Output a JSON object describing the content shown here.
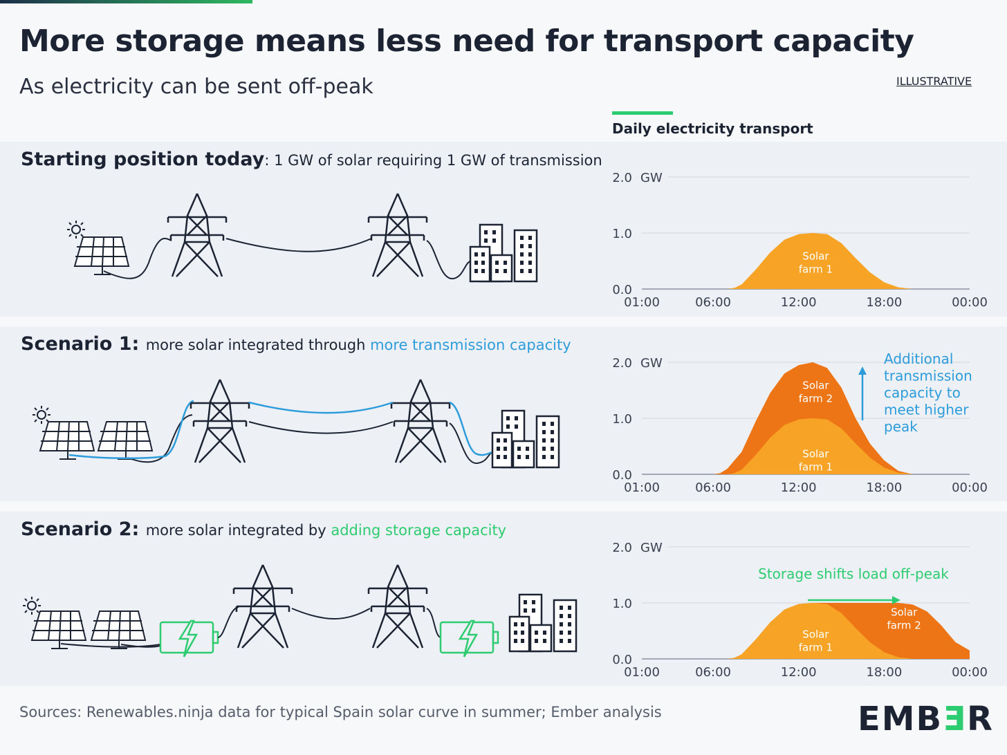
{
  "title": "More storage means less need for transport capacity",
  "subtitle": "As electricity can be sent off-peak",
  "tag": "ILLUSTRATIVE",
  "chart_header": "Daily electricity transport",
  "panels": [
    {
      "lead": "Starting position today",
      "rest": ": 1 GW of solar requiring 1 GW of transmission",
      "highlight": ""
    },
    {
      "lead": "Scenario 1: ",
      "rest": "more solar integrated through ",
      "highlight": "more transmission capacity"
    },
    {
      "lead": "Scenario 2: ",
      "rest": "more solar integrated by ",
      "highlight": "adding storage capacity"
    }
  ],
  "chart_data": [
    {
      "type": "area",
      "title": "Starting position today",
      "x_ticks": [
        "01:00",
        "06:00",
        "12:00",
        "18:00",
        "00:00"
      ],
      "x_range_hours": [
        1,
        24
      ],
      "y_ticks": [
        "0.0",
        "1.0",
        "2.0"
      ],
      "y_unit": "GW",
      "ylim": [
        0,
        2
      ],
      "series": [
        {
          "name": "Solar farm 1",
          "label_lines": [
            "Solar",
            "farm 1"
          ],
          "color": "#f7a325",
          "x": [
            1,
            7,
            7.5,
            8,
            9,
            10,
            11,
            12,
            13,
            14,
            15,
            16,
            17,
            18,
            19,
            20,
            24
          ],
          "values": [
            0,
            0,
            0.02,
            0.08,
            0.35,
            0.65,
            0.88,
            0.98,
            1.0,
            0.98,
            0.82,
            0.55,
            0.3,
            0.12,
            0.03,
            0,
            0
          ]
        }
      ]
    },
    {
      "type": "area",
      "title": "Scenario 1",
      "x_ticks": [
        "01:00",
        "06:00",
        "12:00",
        "18:00",
        "00:00"
      ],
      "x_range_hours": [
        1,
        24
      ],
      "y_ticks": [
        "0.0",
        "1.0",
        "2.0"
      ],
      "y_unit": "GW",
      "ylim": [
        0,
        2
      ],
      "series": [
        {
          "name": "Solar farm 2",
          "label_lines": [
            "Solar",
            "farm 2"
          ],
          "color": "#ee7515",
          "x": [
            1,
            6,
            6.5,
            7,
            8,
            9,
            10,
            11,
            12,
            13,
            14,
            15,
            16,
            17,
            18,
            19,
            20,
            24
          ],
          "values": [
            0,
            0,
            0.02,
            0.1,
            0.4,
            0.95,
            1.45,
            1.8,
            1.95,
            2.0,
            1.9,
            1.55,
            1.0,
            0.55,
            0.25,
            0.06,
            0,
            0
          ]
        },
        {
          "name": "Solar farm 1",
          "label_lines": [
            "Solar",
            "farm 1"
          ],
          "color": "#f7a325",
          "x": [
            1,
            7,
            7.5,
            8,
            9,
            10,
            11,
            12,
            13,
            14,
            15,
            16,
            17,
            18,
            19,
            20,
            24
          ],
          "values": [
            0,
            0,
            0.02,
            0.08,
            0.35,
            0.65,
            0.88,
            0.98,
            1.0,
            0.98,
            0.82,
            0.55,
            0.3,
            0.12,
            0.03,
            0,
            0
          ]
        }
      ],
      "annotation": {
        "lines": [
          "Additional",
          "transmission",
          "capacity to",
          "meet higher",
          "peak"
        ],
        "color": "#2d9cdb"
      }
    },
    {
      "type": "area",
      "title": "Scenario 2",
      "x_ticks": [
        "01:00",
        "06:00",
        "12:00",
        "18:00",
        "00:00"
      ],
      "x_range_hours": [
        1,
        24
      ],
      "y_ticks": [
        "0.0",
        "1.0",
        "2.0"
      ],
      "y_unit": "GW",
      "ylim": [
        0,
        2
      ],
      "series": [
        {
          "name": "Solar farm 2",
          "label_lines": [
            "Solar",
            "farm 2"
          ],
          "color": "#ee7515",
          "x": [
            1,
            7,
            7.5,
            8,
            9,
            10,
            11,
            12,
            13,
            14,
            15,
            16,
            17,
            18,
            19,
            20,
            21,
            22,
            23,
            24
          ],
          "values": [
            0,
            0,
            0.02,
            0.08,
            0.35,
            0.65,
            0.88,
            0.98,
            1.0,
            1.0,
            1.0,
            1.0,
            1.0,
            1.0,
            1.0,
            0.97,
            0.85,
            0.6,
            0.3,
            0.15
          ]
        },
        {
          "name": "Solar farm 1",
          "label_lines": [
            "Solar",
            "farm 1"
          ],
          "color": "#f7a325",
          "x": [
            1,
            7,
            7.5,
            8,
            9,
            10,
            11,
            12,
            13,
            14,
            15,
            16,
            17,
            18,
            19,
            20,
            24
          ],
          "values": [
            0,
            0,
            0.02,
            0.08,
            0.35,
            0.65,
            0.88,
            0.98,
            1.0,
            0.98,
            0.82,
            0.55,
            0.3,
            0.12,
            0.03,
            0,
            0
          ]
        }
      ],
      "annotation": {
        "lines": [
          "Storage shifts load off-peak"
        ],
        "color": "#2ecc71"
      }
    }
  ],
  "sources": "Sources: Renewables.ninja data for typical Spain solar curve in summer; Ember analysis",
  "logo": {
    "a": "EMB",
    "b": "Ǝ",
    "c": "R"
  },
  "colors": {
    "solar1": "#f7a325",
    "solar2": "#ee7515",
    "blue": "#2d9cdb",
    "green": "#2ecc71",
    "dark": "#1c2333"
  }
}
